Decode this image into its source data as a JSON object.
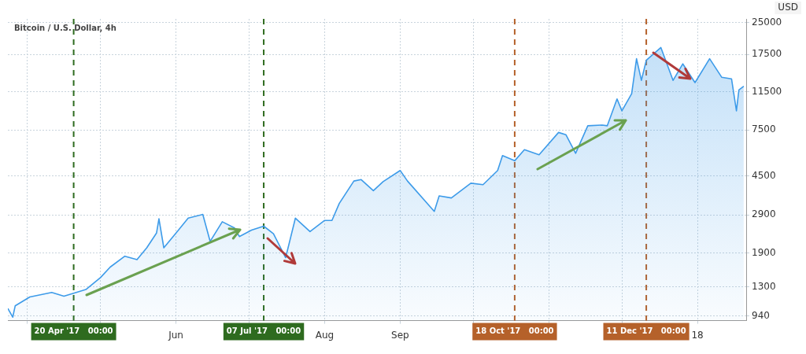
{
  "chart_data": {
    "type": "area",
    "title": "Bitcoin / U.S. Dollar, 4h",
    "ylabel": "USD",
    "x": [
      "2017-03-24",
      "2017-03-26",
      "2017-03-27",
      "2017-04-02",
      "2017-04-11",
      "2017-04-16",
      "2017-04-20",
      "2017-04-25",
      "2017-05-01",
      "2017-05-05",
      "2017-05-11",
      "2017-05-16",
      "2017-05-20",
      "2017-05-24",
      "2017-05-25",
      "2017-05-27",
      "2017-06-02",
      "2017-06-06",
      "2017-06-12",
      "2017-06-15",
      "2017-06-20",
      "2017-06-25",
      "2017-06-27",
      "2017-07-02",
      "2017-07-07",
      "2017-07-11",
      "2017-07-16",
      "2017-07-20",
      "2017-07-26",
      "2017-08-01",
      "2017-08-04",
      "2017-08-07",
      "2017-08-13",
      "2017-08-16",
      "2017-08-21",
      "2017-08-25",
      "2017-09-01",
      "2017-09-04",
      "2017-09-15",
      "2017-09-17",
      "2017-09-22",
      "2017-09-30",
      "2017-10-05",
      "2017-10-11",
      "2017-10-13",
      "2017-10-18",
      "2017-10-22",
      "2017-10-28",
      "2017-11-05",
      "2017-11-08",
      "2017-11-12",
      "2017-11-17",
      "2017-11-23",
      "2017-11-25",
      "2017-11-29",
      "2017-12-01",
      "2017-12-05",
      "2017-12-07",
      "2017-12-09",
      "2017-12-11",
      "2017-12-17",
      "2017-12-22",
      "2017-12-26",
      "2017-12-31",
      "2018-01-06",
      "2018-01-11",
      "2018-01-15",
      "2018-01-17",
      "2018-01-18",
      "2018-01-20"
    ],
    "series": [
      {
        "color": "#3d9be9",
        "values": [
          1020,
          925,
          1050,
          1160,
          1220,
          1170,
          1210,
          1260,
          1440,
          1620,
          1830,
          1760,
          2010,
          2370,
          2780,
          2010,
          2450,
          2800,
          2920,
          2160,
          2690,
          2510,
          2280,
          2450,
          2560,
          2350,
          1800,
          2800,
          2410,
          2730,
          2730,
          3300,
          4240,
          4310,
          3810,
          4210,
          4770,
          4240,
          3020,
          3590,
          3510,
          4140,
          4070,
          4770,
          5640,
          5320,
          6020,
          5690,
          7300,
          7120,
          5780,
          7870,
          7930,
          7870,
          10620,
          9300,
          11250,
          16650,
          13070,
          16370,
          18870,
          13070,
          15720,
          12750,
          16650,
          13520,
          13290,
          9300,
          11730,
          12240
        ]
      }
    ],
    "xlim": [
      "2017-03-24",
      "2018-01-21"
    ],
    "xticks": [
      {
        "value": "2017-04-01",
        "label": null
      },
      {
        "value": "2017-05-01",
        "label": null
      },
      {
        "value": "2017-06-01",
        "label": "Jun"
      },
      {
        "value": "2017-07-01",
        "label": null
      },
      {
        "value": "2017-08-01",
        "label": "Aug"
      },
      {
        "value": "2017-09-01",
        "label": "Sep"
      },
      {
        "value": "2017-10-01",
        "label": null
      },
      {
        "value": "2017-11-01",
        "label": null
      },
      {
        "value": "2017-12-01",
        "label": null
      },
      {
        "value": "2018-01-01",
        "label": "18"
      }
    ],
    "ylim": [
      890,
      26000
    ],
    "log": true,
    "yticks": [
      940,
      1300,
      1900,
      2900,
      4500,
      7500,
      11500,
      17500,
      25000
    ],
    "grid": true,
    "legend": false,
    "ref_lines": [
      {
        "axis": "x",
        "value": "2017-04-20",
        "label": "20 Apr '17   00:00",
        "color": "#2e6b1f",
        "line_style": "dashed"
      },
      {
        "axis": "x",
        "value": "2017-07-07",
        "label": "07 Jul '17   00:00",
        "color": "#2e6b1f",
        "line_style": "dashed"
      },
      {
        "axis": "x",
        "value": "2017-10-18",
        "label": "18 Oct '17   00:00",
        "color": "#b5612a",
        "line_style": "dashed"
      },
      {
        "axis": "x",
        "value": "2017-12-11",
        "label": "11 Dec '17   00:00",
        "color": "#b5612a",
        "line_style": "dashed"
      }
    ]
  }
}
